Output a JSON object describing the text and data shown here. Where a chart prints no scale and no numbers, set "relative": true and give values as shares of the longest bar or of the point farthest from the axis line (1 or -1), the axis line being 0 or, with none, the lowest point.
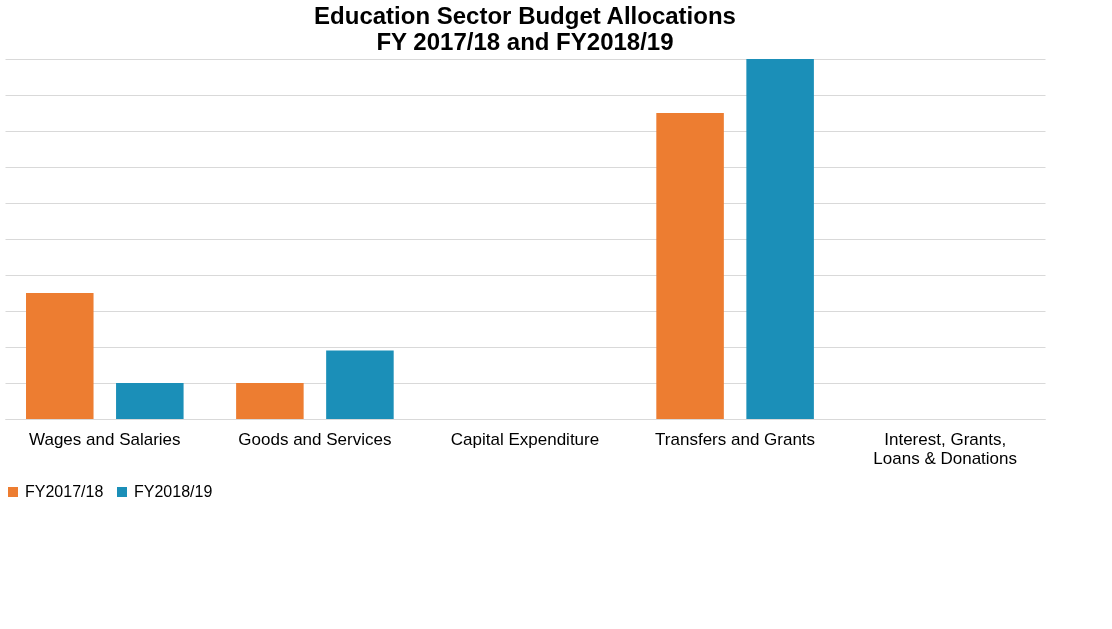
{
  "chart_data": {
    "type": "bar",
    "title": [
      "Education Sector Budget Allocations",
      "FY 2017/18 and FY2018/19"
    ],
    "categories": [
      "Wages and Salaries",
      "Goods and Services",
      "Capital Expenditure",
      "Transfers and Grants",
      "Interest, Grants, Loans & Donations"
    ],
    "series": [
      {
        "name": "FY2017/18",
        "color": "#ed7d31",
        "values": [
          0.35,
          0.1,
          0,
          0.85,
          0
        ]
      },
      {
        "name": "FY2018/19",
        "color": "#1b8fb8",
        "values": [
          0.1,
          0.19,
          0,
          1,
          0
        ]
      }
    ],
    "relative": true,
    "grid": "y",
    "legend": "bottom"
  }
}
